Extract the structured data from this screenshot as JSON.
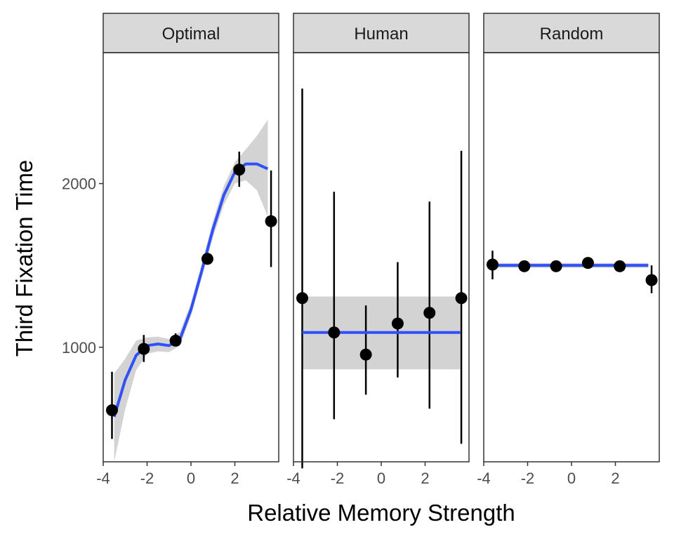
{
  "chart_data": {
    "type": "scatter",
    "xlabel": "Relative Memory Strength",
    "ylabel": "Third Fixation Time",
    "xlim": [
      -4,
      4
    ],
    "ylim": [
      300,
      2800
    ],
    "x_ticks": [
      "-4",
      "-2",
      "0",
      "2"
    ],
    "x_tick_values": [
      -4,
      -2,
      0,
      2
    ],
    "y_ticks": [
      "1000",
      "2000"
    ],
    "y_tick_values": [
      1000,
      2000
    ],
    "grid": false,
    "colors": {
      "points": "#000000",
      "fit_line": "#3050f8",
      "ribbon": "#d3d3d3",
      "strip": "#d9d9d9"
    },
    "panels": [
      {
        "name": "Optimal",
        "points": [
          {
            "x": -3.6,
            "y": 615,
            "ymin": 440,
            "ymax": 850
          },
          {
            "x": -2.15,
            "y": 990,
            "ymin": 910,
            "ymax": 1075
          },
          {
            "x": -0.7,
            "y": 1040,
            "ymin": 1010,
            "ymax": 1085
          },
          {
            "x": 0.75,
            "y": 1540,
            "ymin": 1505,
            "ymax": 1580
          },
          {
            "x": 2.2,
            "y": 2085,
            "ymin": 1980,
            "ymax": 2195
          },
          {
            "x": 3.65,
            "y": 1770,
            "ymin": 1490,
            "ymax": 2080
          }
        ],
        "fit": [
          {
            "x": -3.5,
            "y": 575,
            "lo": 300,
            "hi": 840
          },
          {
            "x": -3.0,
            "y": 800,
            "lo": 620,
            "hi": 930
          },
          {
            "x": -2.5,
            "y": 950,
            "lo": 860,
            "hi": 1040
          },
          {
            "x": -2.0,
            "y": 1010,
            "lo": 960,
            "hi": 1060
          },
          {
            "x": -1.5,
            "y": 1020,
            "lo": 975,
            "hi": 1065
          },
          {
            "x": -1.0,
            "y": 1010,
            "lo": 970,
            "hi": 1050
          },
          {
            "x": -0.5,
            "y": 1050,
            "lo": 1010,
            "hi": 1095
          },
          {
            "x": 0.0,
            "y": 1230,
            "lo": 1190,
            "hi": 1270
          },
          {
            "x": 0.5,
            "y": 1470,
            "lo": 1430,
            "hi": 1515
          },
          {
            "x": 1.0,
            "y": 1720,
            "lo": 1670,
            "hi": 1770
          },
          {
            "x": 1.5,
            "y": 1930,
            "lo": 1870,
            "hi": 1985
          },
          {
            "x": 2.0,
            "y": 2070,
            "lo": 2000,
            "hi": 2130
          },
          {
            "x": 2.5,
            "y": 2120,
            "lo": 2020,
            "hi": 2210
          },
          {
            "x": 3.0,
            "y": 2120,
            "lo": 1960,
            "hi": 2290
          },
          {
            "x": 3.5,
            "y": 2090,
            "lo": 1800,
            "hi": 2390
          }
        ]
      },
      {
        "name": "Human",
        "points": [
          {
            "x": -3.6,
            "y": 1300,
            "ymin": 260,
            "ymax": 2580
          },
          {
            "x": -2.15,
            "y": 1090,
            "ymin": 560,
            "ymax": 1950
          },
          {
            "x": -0.7,
            "y": 955,
            "ymin": 710,
            "ymax": 1255
          },
          {
            "x": 0.75,
            "y": 1145,
            "ymin": 815,
            "ymax": 1520
          },
          {
            "x": 2.2,
            "y": 1210,
            "ymin": 625,
            "ymax": 1890
          },
          {
            "x": 3.65,
            "y": 1300,
            "ymin": 410,
            "ymax": 2200
          }
        ],
        "fit": [
          {
            "x": -3.6,
            "y": 1090,
            "lo": 865,
            "hi": 1310
          },
          {
            "x": 3.6,
            "y": 1090,
            "lo": 865,
            "hi": 1310
          }
        ]
      },
      {
        "name": "Random",
        "points": [
          {
            "x": -3.6,
            "y": 1505,
            "ymin": 1415,
            "ymax": 1590
          },
          {
            "x": -2.15,
            "y": 1495,
            "ymin": 1480,
            "ymax": 1510
          },
          {
            "x": -0.7,
            "y": 1495,
            "ymin": 1482,
            "ymax": 1508
          },
          {
            "x": 0.75,
            "y": 1515,
            "ymin": 1500,
            "ymax": 1530
          },
          {
            "x": 2.2,
            "y": 1495,
            "ymin": 1480,
            "ymax": 1510
          },
          {
            "x": 3.65,
            "y": 1410,
            "ymin": 1330,
            "ymax": 1500
          }
        ],
        "fit": [
          {
            "x": -3.6,
            "y": 1500,
            "lo": 1485,
            "hi": 1515
          },
          {
            "x": 3.5,
            "y": 1500,
            "lo": 1485,
            "hi": 1515
          }
        ]
      }
    ]
  }
}
